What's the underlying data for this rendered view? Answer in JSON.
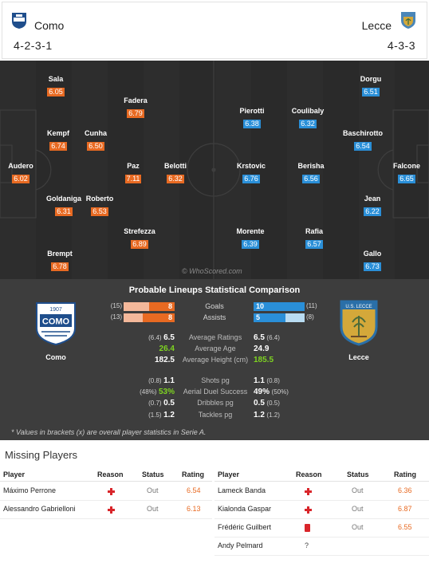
{
  "home": {
    "name": "Como",
    "formation": "4-2-3-1",
    "color": "#e86a22",
    "players": [
      {
        "name": "Sala",
        "rating": "6.05"
      },
      {
        "name": "Fadera",
        "rating": "6.79"
      },
      {
        "name": "Kempf",
        "rating": "6.74"
      },
      {
        "name": "Cunha",
        "rating": "6.50"
      },
      {
        "name": "Audero",
        "rating": "6.02"
      },
      {
        "name": "Paz",
        "rating": "7.11"
      },
      {
        "name": "Belotti",
        "rating": "6.32"
      },
      {
        "name": "Goldaniga",
        "rating": "6.31"
      },
      {
        "name": "Roberto",
        "rating": "6.53"
      },
      {
        "name": "Strefezza",
        "rating": "6.89"
      },
      {
        "name": "Brempt",
        "rating": "6.78"
      }
    ],
    "badge_text": "COMO",
    "badge_year": "1907"
  },
  "away": {
    "name": "Lecce",
    "formation": "4-3-3",
    "color": "#2a8fd8",
    "players": [
      {
        "name": "Dorgu",
        "rating": "6.51"
      },
      {
        "name": "Pierotti",
        "rating": "6.38"
      },
      {
        "name": "Coulibaly",
        "rating": "6.32"
      },
      {
        "name": "Baschirotto",
        "rating": "6.54"
      },
      {
        "name": "Krstovic",
        "rating": "6.76"
      },
      {
        "name": "Berisha",
        "rating": "6.56"
      },
      {
        "name": "Falcone",
        "rating": "6.65"
      },
      {
        "name": "Jean",
        "rating": "6.22"
      },
      {
        "name": "Morente",
        "rating": "6.39"
      },
      {
        "name": "Rafia",
        "rating": "6.57"
      },
      {
        "name": "Gallo",
        "rating": "6.73"
      }
    ],
    "badge_text": "U.S. LECCE"
  },
  "watermark": "© WhoScored.com",
  "comparison": {
    "title": "Probable Lineups Statistical Comparison",
    "bars": [
      {
        "label": "Goals",
        "home": "8",
        "home_overall": "(15)",
        "home_share": 0.5,
        "away": "10",
        "away_overall": "(11)",
        "away_share": 1.0
      },
      {
        "label": "Assists",
        "home": "8",
        "home_overall": "(13)",
        "home_share": 0.62,
        "away": "5",
        "away_overall": "(8)",
        "away_share": 0.62
      }
    ],
    "rows": [
      {
        "label": "Average Ratings",
        "home": "6.5",
        "home_overall": "(6.4)",
        "away": "6.5",
        "away_overall": "(6.4)",
        "home_green": false,
        "away_green": false
      },
      {
        "label": "Average Age",
        "home": "26.4",
        "home_overall": "",
        "away": "24.9",
        "away_overall": "",
        "home_green": true,
        "away_green": false
      },
      {
        "label": "Average Height (cm)",
        "home": "182.5",
        "home_overall": "",
        "away": "185.5",
        "away_overall": "",
        "home_green": false,
        "away_green": true
      },
      {
        "label": "Shots pg",
        "home": "1.1",
        "home_overall": "(0.8)",
        "away": "1.1",
        "away_overall": "(0.8)",
        "home_green": false,
        "away_green": false
      },
      {
        "label": "Aerial Duel Success",
        "home": "53%",
        "home_overall": "(48%)",
        "away": "49%",
        "away_overall": "(50%)",
        "home_green": true,
        "away_green": false
      },
      {
        "label": "Dribbles pg",
        "home": "0.5",
        "home_overall": "(0.7)",
        "away": "0.5",
        "away_overall": "(0.5)",
        "home_green": false,
        "away_green": false
      },
      {
        "label": "Tackles pg",
        "home": "1.2",
        "home_overall": "(1.5)",
        "away": "1.2",
        "away_overall": "(1.2)",
        "home_green": false,
        "away_green": false
      }
    ],
    "footnote": "* Values in brackets (x) are overall player statistics in Serie A."
  },
  "missing": {
    "title": "Missing Players",
    "headers": {
      "player": "Player",
      "reason": "Reason",
      "status": "Status",
      "rating": "Rating"
    },
    "home": [
      {
        "player": "Máximo Perrone",
        "reason": "injury",
        "status": "Out",
        "rating": "6.54"
      },
      {
        "player": "Alessandro Gabrielloni",
        "reason": "injury",
        "status": "Out",
        "rating": "6.13"
      }
    ],
    "away": [
      {
        "player": "Lameck Banda",
        "reason": "injury",
        "status": "Out",
        "rating": "6.36"
      },
      {
        "player": "Kialonda Gaspar",
        "reason": "injury",
        "status": "Out",
        "rating": "6.87"
      },
      {
        "player": "Frédéric Guilbert",
        "reason": "red-card",
        "status": "Out",
        "rating": "6.55"
      },
      {
        "player": "Andy Pelmard",
        "reason": "unknown",
        "reason_text": "?",
        "status": "",
        "rating": ""
      }
    ]
  }
}
